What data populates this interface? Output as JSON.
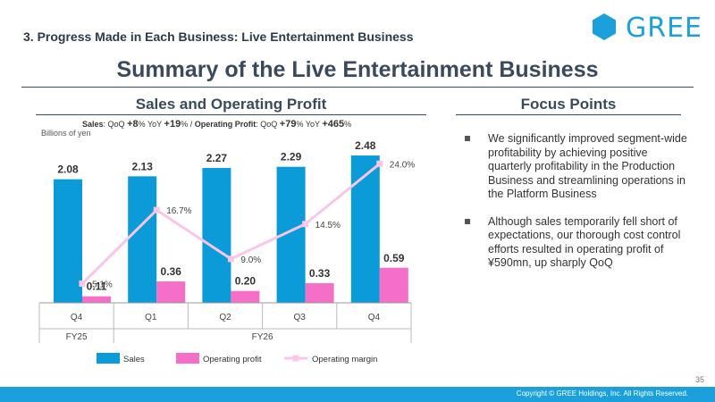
{
  "header": {
    "section_title": "3. Progress Made in Each Business: Live Entertainment Business",
    "logo_text": "GREE"
  },
  "main_title": "Summary of the Live Entertainment Business",
  "left_title": "Sales and Operating Profit",
  "right_title": "Focus Points",
  "growth": {
    "sales_label": "Sales",
    "qoq_label": "QoQ",
    "yoy_label": "YoY",
    "sales_qoq": "+8",
    "sales_yoy": "+19",
    "op_label": "Operating Profit",
    "op_qoq": "+79",
    "op_yoy": "+465",
    "pct": "%",
    "sep": " / "
  },
  "unit": "Billions of yen",
  "chart_data": {
    "type": "bar",
    "categories": [
      "Q4",
      "Q1",
      "Q2",
      "Q3",
      "Q4"
    ],
    "fiscal_groups": [
      {
        "label": "FY25",
        "span": 1
      },
      {
        "label": "FY26",
        "span": 4
      }
    ],
    "series": [
      {
        "name": "Sales",
        "type": "bar",
        "color": "#0b9bd9",
        "values": [
          2.08,
          2.13,
          2.27,
          2.29,
          2.48
        ],
        "labels": [
          "2.08",
          "2.13",
          "2.27",
          "2.29",
          "2.48"
        ]
      },
      {
        "name": "Operating profit",
        "type": "bar",
        "color": "#f56fc9",
        "values": [
          0.11,
          0.36,
          0.2,
          0.33,
          0.59
        ],
        "labels": [
          "0.11",
          "0.36",
          "0.20",
          "0.33",
          "0.59"
        ]
      },
      {
        "name": "Operating margin",
        "type": "line",
        "color": "#f7c6e8",
        "values": [
          5.1,
          16.7,
          9.0,
          14.5,
          24.0
        ],
        "labels": [
          "5.1%",
          "16.7%",
          "9.0%",
          "14.5%",
          "24.0%"
        ]
      }
    ],
    "legend_position": "bottom",
    "grid": false
  },
  "bullets": [
    "We significantly improved segment-wide profitability by achieving positive quarterly profitability in the Production Business and streamlining operations in the Platform Business",
    "Although sales temporarily fell short of expectations, our thorough cost control efforts resulted in operating profit of ¥590mn, up sharply QoQ"
  ],
  "footer": {
    "copyright": "Copyright © GREE Holdings, Inc. All Rights Reserved.",
    "page": "35"
  }
}
